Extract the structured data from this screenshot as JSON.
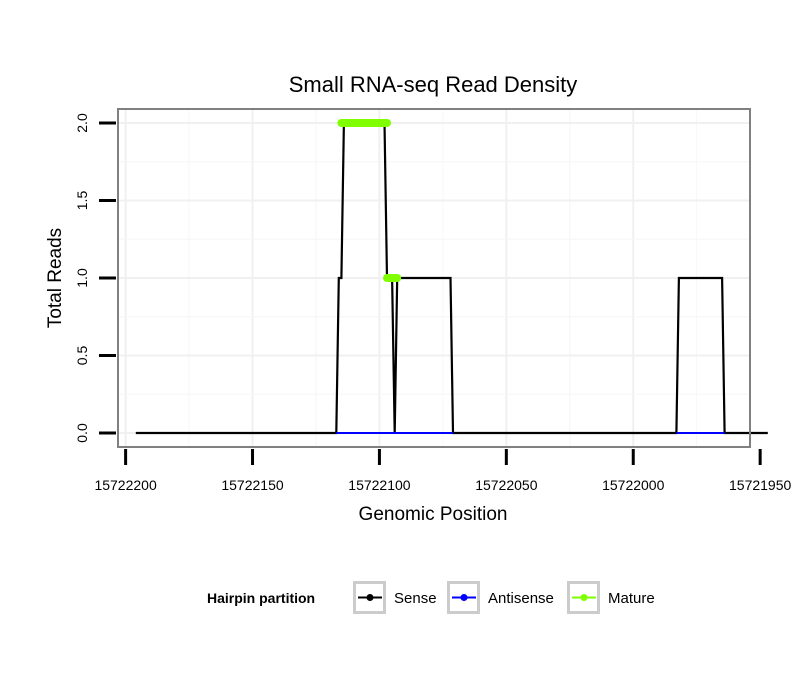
{
  "chart_data": {
    "type": "line",
    "title": "Small RNA-seq Read Density",
    "xlabel": "Genomic Position",
    "ylabel": "Total Reads",
    "xlim": [
      15722203,
      15721954
    ],
    "ylim": [
      -0.09,
      2.09
    ],
    "x_reversed": true,
    "grid": true,
    "xticks": [
      15722200,
      15722150,
      15722100,
      15722050,
      15722000,
      15721950
    ],
    "xtick_labels": [
      "15722200",
      "15722150",
      "15722100",
      "15722050",
      "15722000",
      "15721950"
    ],
    "yticks": [
      0,
      0.5,
      1,
      1.5,
      2
    ],
    "ytick_labels": [
      "0.0",
      "0.5",
      "1.0",
      "1.5",
      "2.0"
    ],
    "series": [
      {
        "name": "Sense",
        "color": "#000000",
        "points": [
          [
            15722196,
            0
          ],
          [
            15722117,
            0
          ],
          [
            15722116,
            1
          ],
          [
            15722115,
            1
          ],
          [
            15722114,
            2
          ],
          [
            15722098,
            2
          ],
          [
            15722097,
            1
          ],
          [
            15722095,
            1
          ],
          [
            15722094,
            0
          ],
          [
            15722093,
            1
          ],
          [
            15722072,
            1
          ],
          [
            15722071,
            0
          ],
          [
            15721983,
            0
          ],
          [
            15721982,
            1
          ],
          [
            15721965,
            1
          ],
          [
            15721964,
            0
          ],
          [
            15721947,
            0
          ]
        ]
      },
      {
        "name": "Antisense",
        "color": "#0000ff",
        "points": [
          [
            15722117,
            0
          ],
          [
            15722071,
            0
          ],
          [
            15721983,
            0
          ],
          [
            15721964,
            0
          ]
        ]
      },
      {
        "name": "Mature",
        "color": "#7fff00",
        "segments": [
          {
            "x": [
              15722115,
              15722097
            ],
            "y": 2
          },
          {
            "x": [
              15722097,
              15722093
            ],
            "y": 1
          }
        ]
      }
    ],
    "legend": {
      "title": "Hairpin partition",
      "placement": "bottom",
      "entries": [
        {
          "label": "Sense",
          "color": "#000000"
        },
        {
          "label": "Antisense",
          "color": "#0000ff"
        },
        {
          "label": "Mature",
          "color": "#7fff00"
        }
      ]
    }
  }
}
